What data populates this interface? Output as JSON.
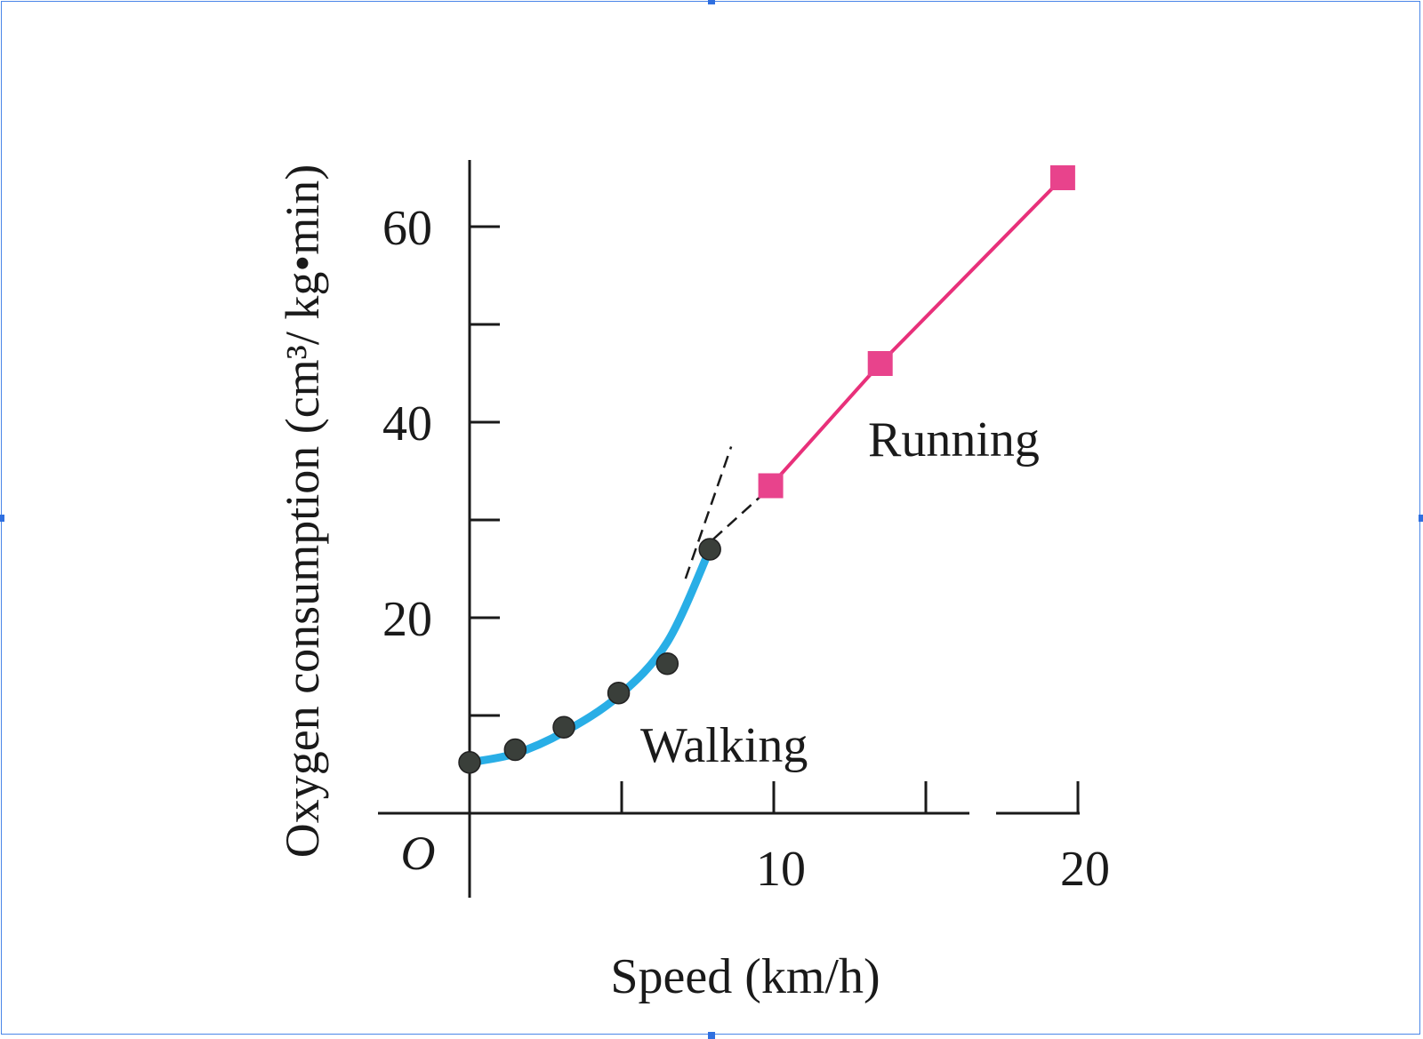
{
  "chart_data": {
    "type": "line",
    "xlabel": "Speed (km/h)",
    "ylabel": "Oxygen consumption (cm³/ kg•min)",
    "origin_label": "O",
    "xlim": [
      0,
      20
    ],
    "ylim": [
      0,
      65
    ],
    "x_ticks": [
      0,
      5,
      10,
      15,
      20
    ],
    "x_tick_labels": [
      "",
      "",
      "10",
      "",
      "20"
    ],
    "y_ticks": [
      10,
      20,
      30,
      40,
      50,
      60
    ],
    "y_tick_labels": [
      "",
      "20",
      "",
      "40",
      "",
      "60"
    ],
    "grid": false,
    "series": [
      {
        "name": "Walking",
        "marker": "circle",
        "color": "#29aee6",
        "marker_color": "#3a3f3a",
        "points": [
          {
            "x": 0,
            "y": 5.2
          },
          {
            "x": 1.5,
            "y": 6.5
          },
          {
            "x": 3.1,
            "y": 8.8
          },
          {
            "x": 4.9,
            "y": 12.3
          },
          {
            "x": 6.5,
            "y": 15.3
          },
          {
            "x": 7.9,
            "y": 27
          }
        ],
        "fit_curve": [
          {
            "x": 0,
            "y": 5.2
          },
          {
            "x": 1.5,
            "y": 6.1
          },
          {
            "x": 3.1,
            "y": 8.3
          },
          {
            "x": 4.9,
            "y": 12.0
          },
          {
            "x": 6.5,
            "y": 17.5
          },
          {
            "x": 7.9,
            "y": 27
          }
        ]
      },
      {
        "name": "Running",
        "marker": "square",
        "color": "#e8307a",
        "marker_color": "#e8438c",
        "points": [
          {
            "x": 9.9,
            "y": 33.5
          },
          {
            "x": 13.5,
            "y": 46
          },
          {
            "x": 19.5,
            "y": 65
          }
        ]
      }
    ],
    "dashed_extensions": [
      {
        "from": {
          "x": 7.1,
          "y": 24
        },
        "to": {
          "x": 8.6,
          "y": 37.5
        }
      },
      {
        "from": {
          "x": 8.0,
          "y": 28
        },
        "to": {
          "x": 9.6,
          "y": 32.5
        }
      }
    ]
  }
}
